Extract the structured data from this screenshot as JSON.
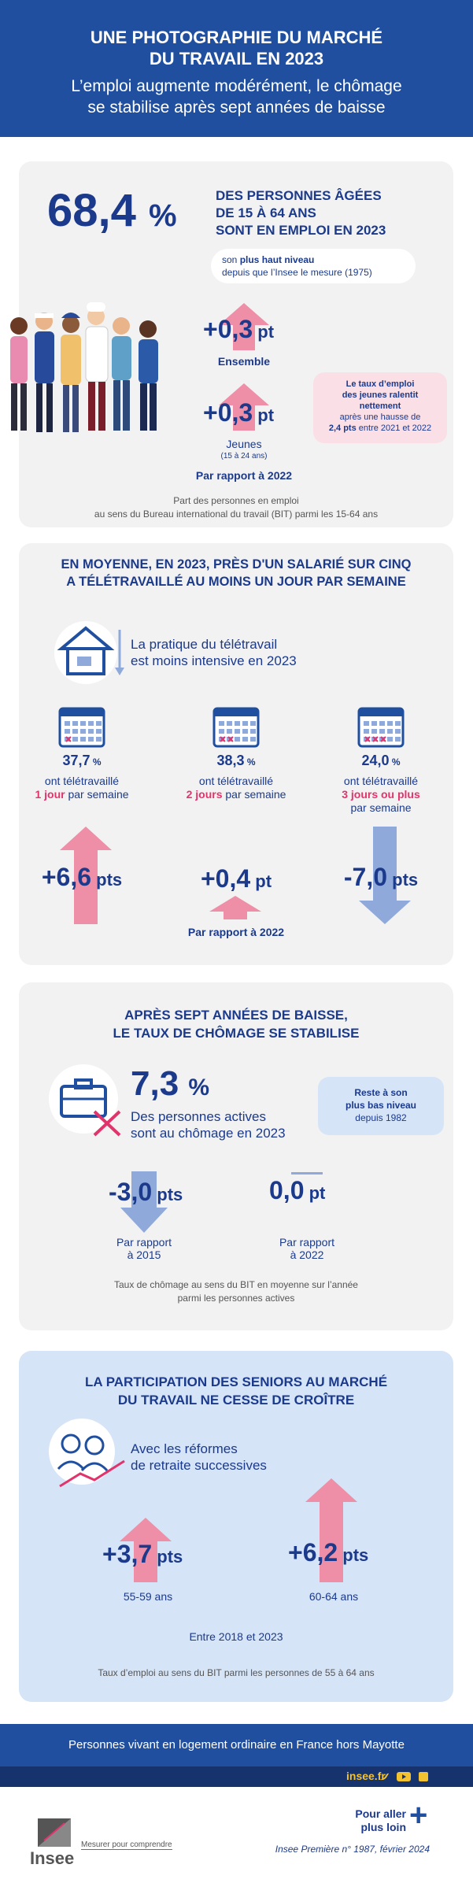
{
  "header": {
    "title_line1": "UNE PHOTOGRAPHIE DU MARCHÉ",
    "title_line2": "DU TRAVAIL EN 2023",
    "subtitle_line1": "L’emploi augmente modérément, le chômage",
    "subtitle_line2": "se stabilise après sept années de baisse"
  },
  "emploi": {
    "rate": "68,4",
    "rate_unit": "%",
    "desc_line1": "DES PERSONNES ÂGÉES",
    "desc_line2": "DE 15 À 64 ANS",
    "desc_line3": "SONT EN EMPLOI EN 2023",
    "bubble_pre": "son ",
    "bubble_bold": "plus haut niveau",
    "bubble_line2": "depuis que l’Insee le mesure (1975)",
    "ensemble_value": "+0,3",
    "ensemble_unit": "pt",
    "ensemble_label": "Ensemble",
    "jeunes_value": "+0,3",
    "jeunes_unit": "pt",
    "jeunes_label": "Jeunes",
    "jeunes_sub": "(15 à 24 ans)",
    "compare": "Par rapport à 2022",
    "note_bold1": "Le taux d’emploi",
    "note_bold2": "des jeunes ralentit",
    "note_bold3": "nettement",
    "note_line4": "après une hausse de",
    "note_bold5": "2,4 pts",
    "note_line5": " entre 2021 et 2022",
    "source_line1": "Part des personnes en emploi",
    "source_line2": "au sens du Bureau international du travail (BIT) parmi les 15-64 ans"
  },
  "teletravail": {
    "title_line1": "EN MOYENNE, EN 2023, PRÈS D'UN SALARIÉ SUR CINQ",
    "title_line2": "A TÉLÉTRAVAILLÉ AU MOINS UN JOUR PAR SEMAINE",
    "subtitle_line1": "La pratique du télétravail",
    "subtitle_line2": "est moins intensive en 2023",
    "items": [
      {
        "value": "37,7",
        "unit": "%",
        "line1": "ont télétravaillé",
        "hl": "1 jour",
        "rest": " par semaine",
        "delta": "+6,6",
        "delta_unit": "pts"
      },
      {
        "value": "38,3",
        "unit": "%",
        "line1": "ont télétravaillé",
        "hl": "2 jours",
        "rest": " par semaine",
        "delta": "+0,4",
        "delta_unit": "pt"
      },
      {
        "value": "24,0",
        "unit": "%",
        "line1": "ont télétravaillé",
        "hl": "3 jours ou plus",
        "rest": "par semaine",
        "delta": "-7,0",
        "delta_unit": "pts"
      }
    ],
    "compare": "Par rapport à 2022"
  },
  "chomage": {
    "title_line1": "APRÈS SEPT ANNÉES DE BAISSE,",
    "title_line2": "LE TAUX DE CHÔMAGE SE STABILISE",
    "rate": "7,3",
    "rate_unit": "%",
    "desc_line1": "Des personnes actives",
    "desc_line2": "sont au chômage en 2023",
    "note_bold1": "Reste à son",
    "note_bold2": "plus bas niveau",
    "note_line3": "depuis 1982",
    "delta1": "-3,0",
    "delta1_unit": "pts",
    "delta1_label1": "Par rapport",
    "delta1_label2": "à 2015",
    "delta2": "0,0",
    "delta2_unit": "pt",
    "delta2_label1": "Par rapport",
    "delta2_label2": "à 2022",
    "source_line1": "Taux de chômage au sens du BIT en moyenne sur l’année",
    "source_line2": "parmi les personnes actives"
  },
  "seniors": {
    "title_line1": "LA PARTICIPATION DES SENIORS AU MARCHÉ",
    "title_line2": "DU TRAVAIL NE CESSE DE CROÎTRE",
    "subtitle_line1": "Avec les réformes",
    "subtitle_line2": "de retraite successives",
    "d1": "+3,7",
    "d1_unit": "pts",
    "d1_label": "55-59 ans",
    "d2": "+6,2",
    "d2_unit": "pts",
    "d2_label": "60-64 ans",
    "compare": "Entre 2018 et 2023",
    "source": "Taux d’emploi au sens du BIT parmi les personnes de 55 à 64 ans"
  },
  "footer": {
    "band": "Personnes vivant en logement ordinaire en France hors Mayotte",
    "site": "insee.fr",
    "logo": "Insee",
    "tagline": "Mesurer pour comprendre",
    "more1": "Pour aller",
    "more2": "plus loin",
    "ref": "Insee Première n° 1987, février 2024"
  },
  "colors": {
    "blue": "#1f4f9e",
    "pink": "#e2346c",
    "arrow_pink": "#ee8fa7",
    "arrow_blue": "#8fa9db"
  }
}
